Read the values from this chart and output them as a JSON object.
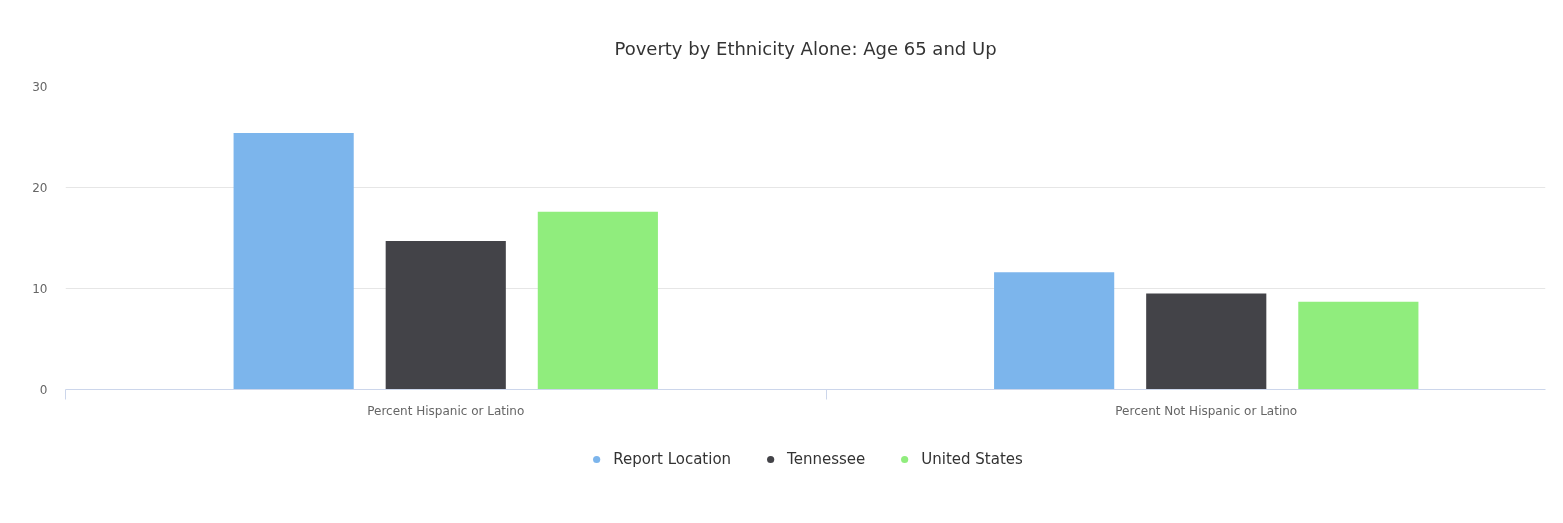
{
  "chart_data": {
    "type": "bar",
    "title": "Poverty by Ethnicity Alone: Age 65 and Up",
    "categories": [
      "Percent Hispanic or Latino",
      "Percent Not Hispanic or Latino"
    ],
    "series": [
      {
        "name": "Report Location",
        "color": "#7cb5ec",
        "values": [
          25.4,
          11.6
        ]
      },
      {
        "name": "Tennessee",
        "color": "#434348",
        "values": [
          14.7,
          9.5
        ]
      },
      {
        "name": "United States",
        "color": "#90ed7d",
        "values": [
          17.6,
          8.7
        ]
      }
    ],
    "ylim": [
      0,
      30
    ],
    "yticks": [
      0,
      10,
      20,
      30
    ],
    "grid": "y",
    "legend": "bottom"
  }
}
